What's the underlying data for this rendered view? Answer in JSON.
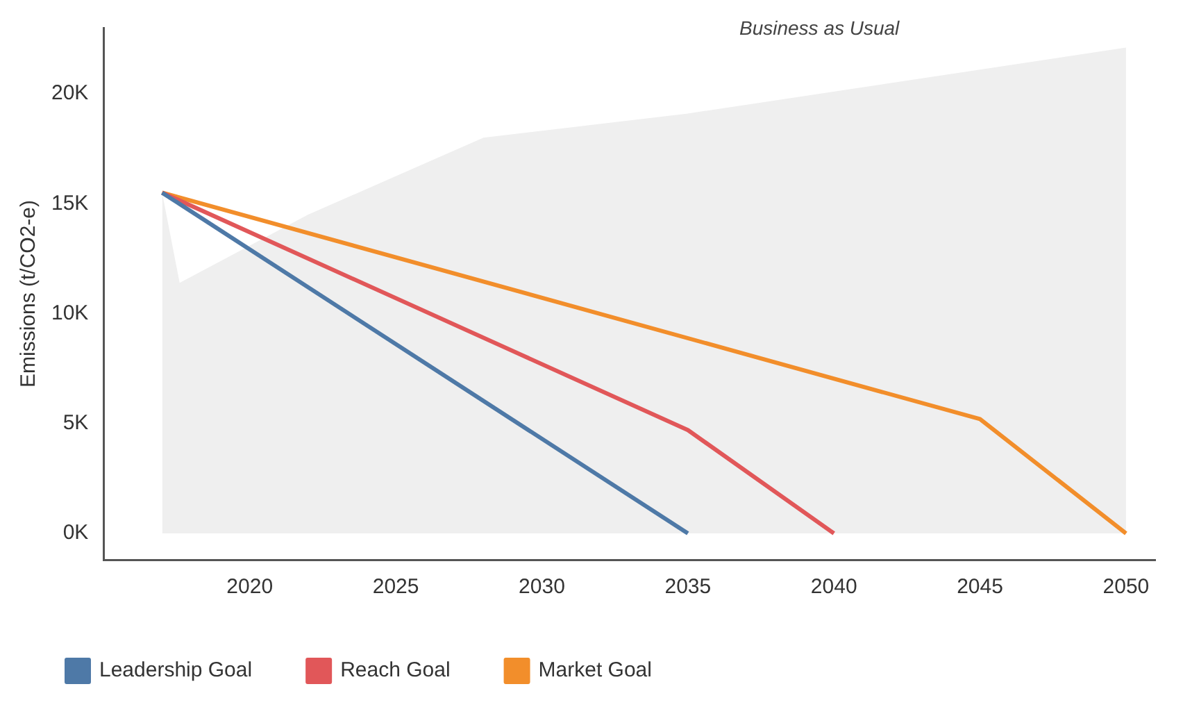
{
  "chart_data": {
    "type": "line",
    "ylabel": "Emissions (t/CO2-e)",
    "xlim": [
      2015,
      2051
    ],
    "xticks": [
      2020,
      2025,
      2030,
      2035,
      2040,
      2045,
      2050
    ],
    "ylim": [
      -1200,
      23000
    ],
    "yticks": [
      {
        "value": 0,
        "label": "0K"
      },
      {
        "value": 5000,
        "label": "5K"
      },
      {
        "value": 10000,
        "label": "10K"
      },
      {
        "value": 15000,
        "label": "15K"
      },
      {
        "value": 20000,
        "label": "20K"
      }
    ],
    "series": [
      {
        "name": "Business as Usual",
        "type": "area",
        "color": "#efefef",
        "x": [
          2017,
          2017.6,
          2022,
          2028,
          2035,
          2045,
          2050
        ],
        "values": [
          15500,
          11400,
          14500,
          18000,
          19100,
          21100,
          22100
        ]
      },
      {
        "name": "Leadership Goal",
        "color": "#4e79a7",
        "x": [
          2017,
          2035
        ],
        "values": [
          15500,
          0
        ]
      },
      {
        "name": "Reach Goal",
        "color": "#e15759",
        "x": [
          2017,
          2035,
          2040
        ],
        "values": [
          15500,
          4700,
          0
        ]
      },
      {
        "name": "Market Goal",
        "color": "#f28e2b",
        "x": [
          2017,
          2045,
          2050
        ],
        "values": [
          15500,
          5200,
          0
        ]
      }
    ],
    "grid": false,
    "legend": "bottom left",
    "marker": "none"
  }
}
